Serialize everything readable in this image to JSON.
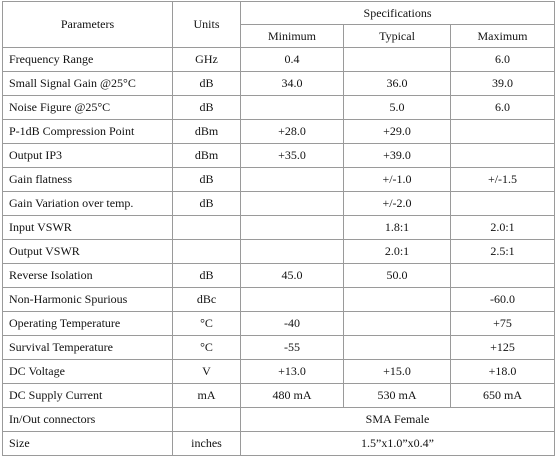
{
  "header": {
    "parameters": "Parameters",
    "units": "Units",
    "specifications": "Specifications",
    "minimum": "Minimum",
    "typical": "Typical",
    "maximum": "Maximum"
  },
  "rows": [
    {
      "parameter": "Frequency Range",
      "units": "GHz",
      "min": "0.4",
      "max": "6.0"
    },
    {
      "parameter": "Small Signal Gain @25°C",
      "units": "dB",
      "min": "34.0",
      "typ": "36.0",
      "max": "39.0"
    },
    {
      "parameter": "Noise Figure @25°C",
      "units": "dB",
      "typ": "5.0",
      "max": "6.0"
    },
    {
      "parameter": "P-1dB Compression Point",
      "units": "dBm",
      "min": "+28.0",
      "typ": "+29.0"
    },
    {
      "parameter": "Output IP3",
      "units": "dBm",
      "min": "+35.0",
      "typ": "+39.0"
    },
    {
      "parameter": "Gain flatness",
      "units": "dB",
      "typ": "+/-1.0",
      "max": "+/-1.5"
    },
    {
      "parameter": "Gain Variation over temp.",
      "units": "dB",
      "typ": "+/-2.0"
    },
    {
      "parameter": "Input VSWR",
      "typ": "1.8:1",
      "max": "2.0:1"
    },
    {
      "parameter": "Output VSWR",
      "typ": "2.0:1",
      "max": "2.5:1"
    },
    {
      "parameter": "Reverse Isolation",
      "units": "dB",
      "min": "45.0",
      "typ": "50.0"
    },
    {
      "parameter": "Non-Harmonic Spurious",
      "units": "dBc",
      "max": "-60.0"
    },
    {
      "parameter": "Operating Temperature",
      "units": "°C",
      "min": "-40",
      "max": "+75"
    },
    {
      "parameter": "Survival Temperature",
      "units": "°C",
      "min": "-55",
      "max": "+125"
    },
    {
      "parameter": "DC Voltage",
      "units": "V",
      "min": "+13.0",
      "typ": "+15.0",
      "max": "+18.0"
    },
    {
      "parameter": "DC Supply Current",
      "units": "mA",
      "min": "480 mA",
      "typ": "530 mA",
      "max": "650 mA"
    },
    {
      "parameter": "In/Out connectors",
      "spec": "SMA Female"
    },
    {
      "parameter": "Size",
      "units": "inches",
      "spec": "1.5”x1.0”x0.4”"
    }
  ]
}
